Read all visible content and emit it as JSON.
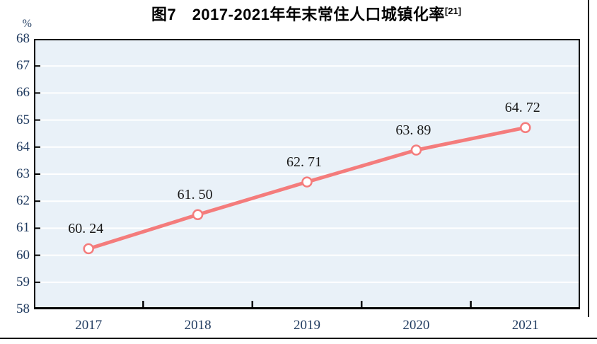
{
  "figure": {
    "title": "图7　2017-2021年年末常住人口城镇化率",
    "title_superscript": "[21]",
    "unit_label": "%"
  },
  "chart_data": {
    "type": "line",
    "title": "图7 2017-2021年年末常住人口城镇化率[21]",
    "categories": [
      "2017",
      "2018",
      "2019",
      "2020",
      "2021"
    ],
    "values": [
      60.24,
      61.5,
      62.71,
      63.89,
      64.72
    ],
    "data_labels": [
      "60. 24",
      "61. 50",
      "62. 71",
      "63. 89",
      "64. 72"
    ],
    "ylabel": "%",
    "xlabel": "",
    "ylim": [
      58,
      68
    ],
    "ytick_step": 1,
    "ytick_labels": [
      "68",
      "67",
      "66",
      "65",
      "64",
      "63",
      "62",
      "61",
      "60",
      "59",
      "58"
    ],
    "grid": true,
    "legend": "none",
    "marker": "circle-open",
    "colors": {
      "line": "#F47C7C",
      "marker_fill": "#FFFFFF",
      "plot_bg": "#E9F1F8",
      "gridline": "#FFFFFF",
      "axis_border": "#000000",
      "axis_text": "#1F3A5F",
      "data_label_text": "#1A1A1A"
    }
  }
}
